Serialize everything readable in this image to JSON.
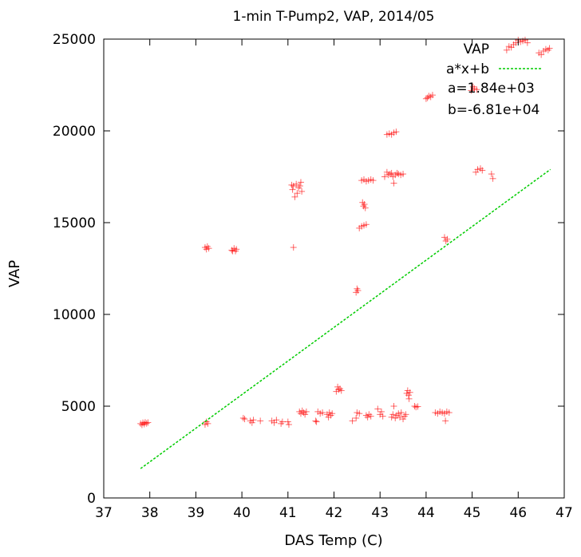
{
  "chart_data": {
    "type": "scatter",
    "title": "1-min T-Pump2, VAP, 2014/05",
    "xlabel": "DAS Temp (C)",
    "ylabel": "VAP",
    "xlim": [
      37,
      47
    ],
    "ylim": [
      0,
      25000
    ],
    "xticks": [
      "37",
      "38",
      "39",
      "40",
      "41",
      "42",
      "43",
      "44",
      "45",
      "46",
      "47"
    ],
    "yticks": [
      "0",
      "5000",
      "10000",
      "15000",
      "20000",
      "25000"
    ],
    "grid": false,
    "legend_position": "top-right",
    "colors": {
      "points": "#ff0000",
      "fit": "#00cc00"
    },
    "series": [
      {
        "name": "VAP",
        "marker": "plus",
        "points": [
          [
            37.8,
            4050
          ],
          [
            37.83,
            3980
          ],
          [
            37.85,
            4100
          ],
          [
            37.88,
            4020
          ],
          [
            37.9,
            4120
          ],
          [
            37.93,
            4060
          ],
          [
            37.96,
            4110
          ],
          [
            39.2,
            4000
          ],
          [
            39.23,
            4150
          ],
          [
            39.26,
            4050
          ],
          [
            39.2,
            13650
          ],
          [
            39.23,
            13550
          ],
          [
            39.25,
            13700
          ],
          [
            39.28,
            13600
          ],
          [
            39.78,
            13500
          ],
          [
            39.8,
            13450
          ],
          [
            39.83,
            13600
          ],
          [
            39.86,
            13450
          ],
          [
            39.88,
            13550
          ],
          [
            40.03,
            4350
          ],
          [
            40.06,
            4300
          ],
          [
            40.18,
            4200
          ],
          [
            40.22,
            4100
          ],
          [
            40.25,
            4250
          ],
          [
            40.4,
            4200
          ],
          [
            40.65,
            4200
          ],
          [
            40.7,
            4100
          ],
          [
            40.75,
            4250
          ],
          [
            40.85,
            4050
          ],
          [
            40.88,
            4150
          ],
          [
            41.0,
            4150
          ],
          [
            41.02,
            4000
          ],
          [
            41.08,
            17050
          ],
          [
            41.1,
            16800
          ],
          [
            41.12,
            17000
          ],
          [
            41.15,
            16400
          ],
          [
            41.18,
            17100
          ],
          [
            41.2,
            16600
          ],
          [
            41.23,
            16900
          ],
          [
            41.26,
            17000
          ],
          [
            41.28,
            17200
          ],
          [
            41.3,
            16700
          ],
          [
            41.12,
            13650
          ],
          [
            41.25,
            4700
          ],
          [
            41.28,
            4600
          ],
          [
            41.31,
            4750
          ],
          [
            41.34,
            4650
          ],
          [
            41.37,
            4550
          ],
          [
            41.4,
            4700
          ],
          [
            41.6,
            4200
          ],
          [
            41.62,
            4150
          ],
          [
            41.65,
            4700
          ],
          [
            41.7,
            4600
          ],
          [
            41.75,
            4650
          ],
          [
            41.85,
            4550
          ],
          [
            41.88,
            4400
          ],
          [
            41.9,
            4650
          ],
          [
            41.93,
            4500
          ],
          [
            41.96,
            4600
          ],
          [
            42.05,
            5800
          ],
          [
            42.08,
            6050
          ],
          [
            42.1,
            5900
          ],
          [
            42.13,
            5950
          ],
          [
            42.16,
            5850
          ],
          [
            42.4,
            4200
          ],
          [
            42.48,
            4350
          ],
          [
            42.5,
            4650
          ],
          [
            42.55,
            4600
          ],
          [
            42.48,
            11200
          ],
          [
            42.5,
            11400
          ],
          [
            42.52,
            11300
          ],
          [
            42.55,
            14700
          ],
          [
            42.6,
            14800
          ],
          [
            42.65,
            14850
          ],
          [
            42.7,
            14900
          ],
          [
            42.62,
            16100
          ],
          [
            42.64,
            15900
          ],
          [
            42.66,
            16000
          ],
          [
            42.68,
            15800
          ],
          [
            42.6,
            17300
          ],
          [
            42.65,
            17350
          ],
          [
            42.7,
            17250
          ],
          [
            42.75,
            17300
          ],
          [
            42.8,
            17350
          ],
          [
            42.85,
            17300
          ],
          [
            42.7,
            4500
          ],
          [
            42.73,
            4400
          ],
          [
            42.76,
            4550
          ],
          [
            42.8,
            4450
          ],
          [
            42.95,
            4850
          ],
          [
            43.0,
            4550
          ],
          [
            43.03,
            4700
          ],
          [
            43.06,
            4450
          ],
          [
            43.1,
            17500
          ],
          [
            43.15,
            17750
          ],
          [
            43.18,
            17600
          ],
          [
            43.22,
            17650
          ],
          [
            43.25,
            17700
          ],
          [
            43.28,
            17500
          ],
          [
            43.3,
            17150
          ],
          [
            43.33,
            17600
          ],
          [
            43.37,
            17700
          ],
          [
            43.4,
            17650
          ],
          [
            43.45,
            17600
          ],
          [
            43.5,
            17650
          ],
          [
            43.15,
            19800
          ],
          [
            43.2,
            19850
          ],
          [
            43.25,
            19800
          ],
          [
            43.3,
            19900
          ],
          [
            43.35,
            19950
          ],
          [
            43.25,
            4400
          ],
          [
            43.28,
            4550
          ],
          [
            43.3,
            5000
          ],
          [
            43.33,
            4350
          ],
          [
            43.36,
            4500
          ],
          [
            43.4,
            4600
          ],
          [
            43.43,
            4400
          ],
          [
            43.46,
            4650
          ],
          [
            43.5,
            4300
          ],
          [
            43.53,
            4450
          ],
          [
            43.56,
            4550
          ],
          [
            43.58,
            5700
          ],
          [
            43.6,
            5850
          ],
          [
            43.62,
            5600
          ],
          [
            43.65,
            5750
          ],
          [
            43.63,
            5400
          ],
          [
            43.75,
            5000
          ],
          [
            43.78,
            4950
          ],
          [
            43.82,
            4980
          ],
          [
            44.0,
            21750
          ],
          [
            44.03,
            21800
          ],
          [
            44.06,
            21900
          ],
          [
            44.1,
            21850
          ],
          [
            44.14,
            21950
          ],
          [
            44.2,
            4650
          ],
          [
            44.25,
            4600
          ],
          [
            44.3,
            4700
          ],
          [
            44.35,
            4650
          ],
          [
            44.4,
            4600
          ],
          [
            44.45,
            4700
          ],
          [
            44.5,
            4650
          ],
          [
            44.42,
            4200
          ],
          [
            44.4,
            14200
          ],
          [
            44.43,
            14000
          ],
          [
            44.46,
            14100
          ],
          [
            44.98,
            22200
          ],
          [
            45.02,
            22400
          ],
          [
            45.05,
            22300
          ],
          [
            45.1,
            22250
          ],
          [
            45.08,
            17750
          ],
          [
            45.12,
            17900
          ],
          [
            45.18,
            17950
          ],
          [
            45.22,
            17850
          ],
          [
            45.42,
            17650
          ],
          [
            45.45,
            17400
          ],
          [
            45.75,
            24400
          ],
          [
            45.8,
            24600
          ],
          [
            45.85,
            24550
          ],
          [
            45.9,
            24700
          ],
          [
            45.95,
            24800
          ],
          [
            46.0,
            24950
          ],
          [
            46.05,
            24850
          ],
          [
            46.1,
            24900
          ],
          [
            46.15,
            24950
          ],
          [
            46.2,
            24800
          ],
          [
            46.45,
            24250
          ],
          [
            46.5,
            24150
          ],
          [
            46.55,
            24350
          ],
          [
            46.6,
            24450
          ],
          [
            46.65,
            24400
          ],
          [
            46.68,
            24500
          ]
        ]
      },
      {
        "name": "a*x+b",
        "type": "line",
        "x": [
          37.8,
          46.7
        ],
        "y": [
          1600,
          17900
        ]
      }
    ],
    "annotations": [
      "a=1.84e+03",
      "b=-6.81e+04"
    ]
  }
}
